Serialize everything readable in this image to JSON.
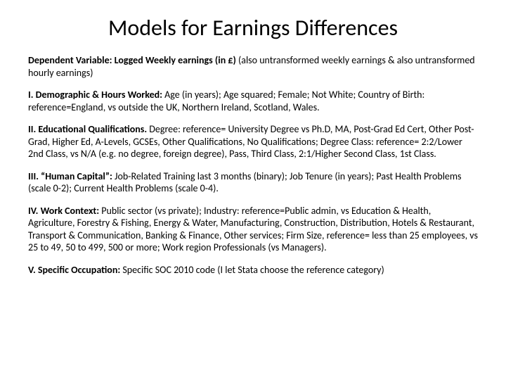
{
  "title": "Models for Earnings Differences",
  "paragraphs": [
    {
      "lead": "Dependent Variable: Logged Weekly earnings (in £)",
      "rest": " (also untransformed weekly earnings & also untransformed hourly earnings)"
    },
    {
      "lead": "I. Demographic & Hours Worked:",
      "rest": " Age (in years); Age squared; Female; Not White; Country of Birth: reference=England, vs outside the UK, Northern Ireland, Scotland, Wales."
    },
    {
      "lead": "II.  Educational Qualifications.",
      "rest": "  Degree: reference= University Degree vs Ph.D, MA, Post-Grad Ed Cert, Other Post-Grad,  Higher Ed, A-Levels, GCSEs, Other Qualifications, No Qualifications; Degree Class: reference= 2:2/Lower 2nd Class, vs N/A (e.g. no degree, foreign degree), Pass, Third Class, 2:1/Higher Second Class, 1st Class."
    },
    {
      "lead": "III. “Human Capital”:",
      "rest": " Job-Related Training last 3 months (binary); Job Tenure (in years); Past Health Problems (scale 0-2); Current Health Problems (scale 0-4)."
    },
    {
      "lead": "IV. Work Context:",
      "rest": " Public sector (vs private); Industry: reference=Public admin, vs Education & Health,  Agriculture, Forestry & Fishing, Energy & Water, Manufacturing, Construction, Distribution, Hotels & Restaurant, Transport & Communication, Banking & Finance, Other services; Firm Size, reference= less than 25 employees, vs 25 to 49, 50 to 499, 500 or more; Work region Professionals (vs Managers)."
    },
    {
      "lead": "V. Specific Occupation:",
      "rest": " Specific SOC 2010 code (I let Stata choose the reference category)"
    }
  ]
}
